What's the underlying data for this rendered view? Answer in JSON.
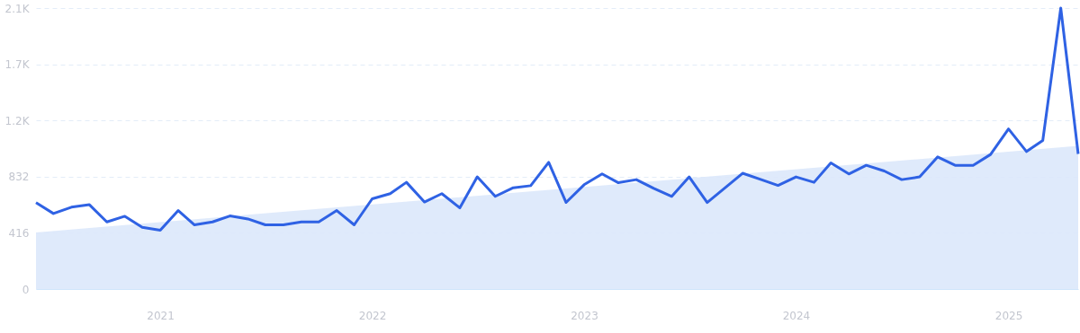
{
  "chart_data": {
    "type": "line",
    "x": [
      "2020-06",
      "2020-07",
      "2020-08",
      "2020-09",
      "2020-10",
      "2020-11",
      "2020-12",
      "2021-01",
      "2021-02",
      "2021-03",
      "2021-04",
      "2021-05",
      "2021-06",
      "2021-07",
      "2021-08",
      "2021-09",
      "2021-10",
      "2021-11",
      "2021-12",
      "2022-01",
      "2022-02",
      "2022-03",
      "2022-04",
      "2022-05",
      "2022-06",
      "2022-07",
      "2022-08",
      "2022-09",
      "2022-10",
      "2022-11",
      "2022-12",
      "2023-01",
      "2023-02",
      "2023-03",
      "2023-04",
      "2023-05",
      "2023-06",
      "2023-07",
      "2023-08",
      "2023-09",
      "2023-10",
      "2023-11",
      "2023-12",
      "2024-01",
      "2024-02",
      "2024-03",
      "2024-04",
      "2024-05",
      "2024-06",
      "2024-07",
      "2024-08",
      "2024-09",
      "2024-10",
      "2024-11",
      "2024-12",
      "2025-01",
      "2025-02",
      "2025-03",
      "2025-04",
      "2025-05"
    ],
    "series": [
      {
        "type": "area",
        "color": "#dbe8fb",
        "x": [
          "2020-06",
          "2025-05"
        ],
        "values": [
          419,
          1060
        ]
      },
      {
        "color": "#2f62e4",
        "values": [
          639,
          559,
          606,
          624,
          497,
          539,
          457,
          435,
          581,
          475,
          497,
          541,
          519,
          475,
          475,
          497,
          497,
          581,
          475,
          668,
          706,
          790,
          644,
          706,
          601,
          830,
          686,
          750,
          765,
          938,
          641,
          772,
          852,
          787,
          810,
          745,
          686,
          830,
          641,
          750,
          857,
          812,
          767,
          830,
          790,
          934,
          852,
          916,
          874,
          810,
          830,
          978,
          916,
          916,
          996,
          1185,
          1018,
          1100,
          2080,
          1000
        ]
      }
    ],
    "xlim": [
      "2020-06",
      "2025-05"
    ],
    "xticks": [
      "2021",
      "2022",
      "2023",
      "2024",
      "2025"
    ],
    "ylim": [
      0,
      2080
    ],
    "yticks": [
      0,
      416,
      832,
      {
        "value": 1248,
        "label": "1.2K"
      },
      {
        "value": 1664,
        "label": "1.7K"
      },
      {
        "value": 2080,
        "label": "2.1K"
      }
    ],
    "grid": "y",
    "line_style": "solid",
    "marker": "none"
  }
}
